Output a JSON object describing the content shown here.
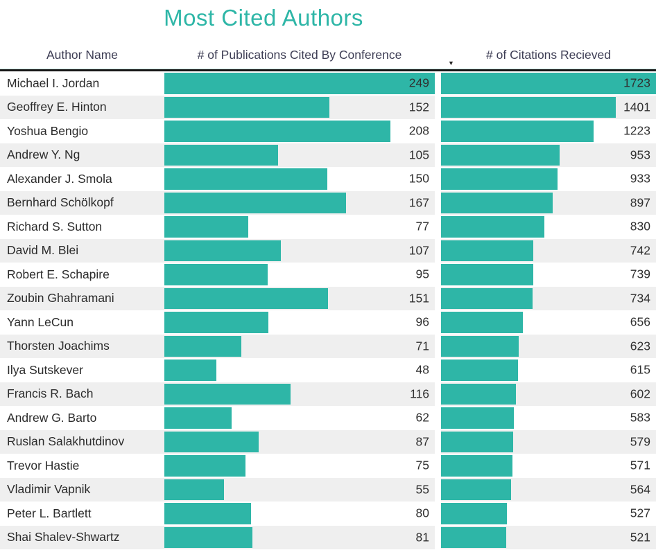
{
  "title": "Most Cited Authors",
  "colors": {
    "accent": "#2eb6a7",
    "alt_row": "#efefef",
    "header_text": "#3d3d54",
    "divider": "#161616"
  },
  "columns": {
    "author": "Author Name",
    "publications": "# of Publications Cited By Conference",
    "citations": "# of Citations Recieved"
  },
  "sort_indicator": {
    "column": "citations",
    "direction": "desc",
    "glyph": "▼"
  },
  "chart_data": {
    "type": "table",
    "title": "Most Cited Authors",
    "columns": [
      "Author Name",
      "# of Publications Cited By Conference",
      "# of Citations Recieved"
    ],
    "bar_color": "#2eb6a7",
    "publications_max": 249,
    "citations_max": 1723,
    "rows": [
      {
        "author": "Michael I. Jordan",
        "publications": 249,
        "citations": 1723
      },
      {
        "author": "Geoffrey E. Hinton",
        "publications": 152,
        "citations": 1401
      },
      {
        "author": "Yoshua Bengio",
        "publications": 208,
        "citations": 1223
      },
      {
        "author": "Andrew Y. Ng",
        "publications": 105,
        "citations": 953
      },
      {
        "author": "Alexander J. Smola",
        "publications": 150,
        "citations": 933
      },
      {
        "author": "Bernhard Schölkopf",
        "publications": 167,
        "citations": 897
      },
      {
        "author": "Richard S. Sutton",
        "publications": 77,
        "citations": 830
      },
      {
        "author": "David M. Blei",
        "publications": 107,
        "citations": 742
      },
      {
        "author": "Robert E. Schapire",
        "publications": 95,
        "citations": 739
      },
      {
        "author": "Zoubin Ghahramani",
        "publications": 151,
        "citations": 734
      },
      {
        "author": "Yann LeCun",
        "publications": 96,
        "citations": 656
      },
      {
        "author": "Thorsten Joachims",
        "publications": 71,
        "citations": 623
      },
      {
        "author": "Ilya Sutskever",
        "publications": 48,
        "citations": 615
      },
      {
        "author": "Francis R. Bach",
        "publications": 116,
        "citations": 602
      },
      {
        "author": "Andrew G. Barto",
        "publications": 62,
        "citations": 583
      },
      {
        "author": "Ruslan Salakhutdinov",
        "publications": 87,
        "citations": 579
      },
      {
        "author": "Trevor Hastie",
        "publications": 75,
        "citations": 571
      },
      {
        "author": "Vladimir Vapnik",
        "publications": 55,
        "citations": 564
      },
      {
        "author": "Peter L. Bartlett",
        "publications": 80,
        "citations": 527
      },
      {
        "author": "Shai Shalev-Shwartz",
        "publications": 81,
        "citations": 521
      }
    ]
  }
}
